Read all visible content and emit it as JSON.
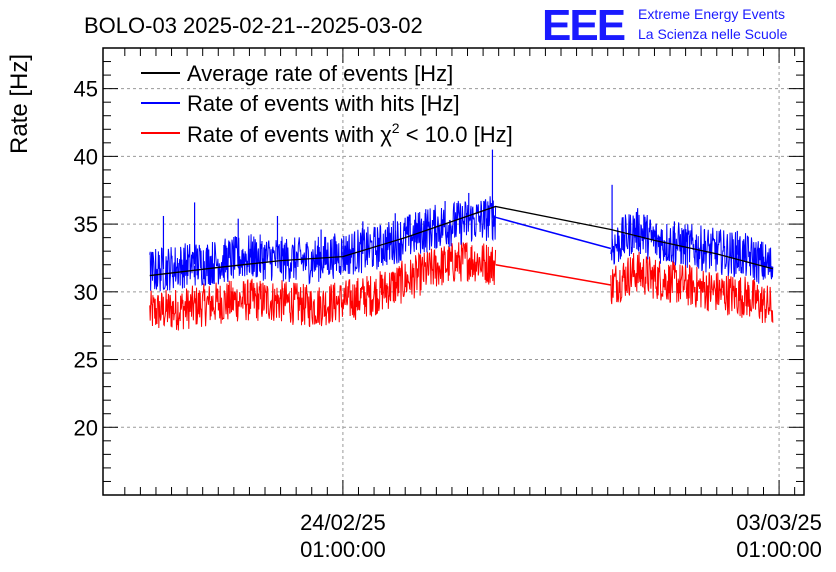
{
  "chart_data": {
    "type": "line",
    "title": "BOLO-03 2025-02-21--2025-03-02",
    "ylabel": "Rate [Hz]",
    "xlabel": "",
    "ylim": [
      15,
      48
    ],
    "xlim_days": [
      -3.85,
      7.4
    ],
    "yticks": [
      20,
      25,
      30,
      35,
      40,
      45
    ],
    "yticklabels": [
      "20",
      "25",
      "30",
      "35",
      "40",
      "45"
    ],
    "xticks": [
      {
        "day": 0,
        "date": "24/02/25",
        "time": "01:00:00"
      },
      {
        "day": 7,
        "date": "03/03/25",
        "time": "01:00:00"
      }
    ],
    "x_reference": "24/02/25 01:00:00 = day 0",
    "grid": true,
    "legend_position": "top-left",
    "legend": [
      {
        "name": "Average rate of events [Hz]",
        "color": "#000000"
      },
      {
        "name": "Rate of events with hits [Hz]",
        "color": "#0000ff"
      },
      {
        "name_main": "Rate of events with ",
        "name_chi": "χ",
        "name_sup": "2",
        "name_end": " < 10.0 [Hz]",
        "color": "#ff0000"
      }
    ],
    "series": [
      {
        "name": "Average rate of events [Hz]",
        "color": "#000000",
        "x": [
          -3.1,
          -2.0,
          -1.0,
          0.0,
          1.0,
          2.45,
          4.3,
          5.0,
          6.0,
          6.9
        ],
        "y": [
          31.2,
          31.8,
          32.3,
          32.6,
          34.0,
          36.3,
          34.6,
          33.8,
          32.8,
          31.7
        ]
      },
      {
        "name": "Rate of events with hits [Hz]",
        "color": "#0000ff",
        "x": [
          -3.1,
          -2.5,
          -2.0,
          -1.5,
          -1.0,
          -0.5,
          0.0,
          0.5,
          1.0,
          1.5,
          2.0,
          2.45,
          4.3,
          4.7,
          5.0,
          5.5,
          6.0,
          6.5,
          6.9
        ],
        "y": [
          31.5,
          32.0,
          32.2,
          32.6,
          32.4,
          32.3,
          32.8,
          33.2,
          34.0,
          34.8,
          35.2,
          35.5,
          33.2,
          34.6,
          33.8,
          33.4,
          33.0,
          32.6,
          31.8
        ],
        "noise": 1.7,
        "spikes": [
          {
            "x": -2.88,
            "y": 35.6
          },
          {
            "x": -2.38,
            "y": 36.6
          },
          {
            "x": -1.68,
            "y": 35.4
          },
          {
            "x": -1.05,
            "y": 35.6
          },
          {
            "x": -0.35,
            "y": 34.6
          },
          {
            "x": 0.32,
            "y": 35.2
          },
          {
            "x": 0.84,
            "y": 35.8
          },
          {
            "x": 1.33,
            "y": 36.1
          },
          {
            "x": 1.64,
            "y": 36.7
          },
          {
            "x": 2.02,
            "y": 37.3
          },
          {
            "x": 2.4,
            "y": 40.5
          },
          {
            "x": 4.32,
            "y": 37.9
          },
          {
            "x": 4.83,
            "y": 35.7
          },
          {
            "x": 5.32,
            "y": 35.2
          },
          {
            "x": 5.8,
            "y": 34.6
          },
          {
            "x": 6.33,
            "y": 34.5
          }
        ]
      },
      {
        "name": "Rate of events with χ2 < 10.0 [Hz]",
        "color": "#ff0000",
        "x": [
          -3.1,
          -2.5,
          -2.0,
          -1.5,
          -1.0,
          -0.5,
          0.0,
          0.5,
          1.0,
          1.5,
          2.0,
          2.45,
          4.3,
          4.7,
          5.0,
          5.5,
          6.0,
          6.5,
          6.9
        ],
        "y": [
          28.5,
          28.8,
          29.2,
          29.4,
          29.3,
          28.9,
          29.3,
          29.8,
          30.8,
          31.8,
          32.4,
          32.0,
          30.5,
          31.5,
          31.0,
          30.5,
          30.0,
          29.6,
          28.8
        ],
        "noise": 1.6,
        "spikes": []
      }
    ]
  },
  "logo": {
    "letters": "EEE",
    "line1": "Extreme Energy Events",
    "line2": "La Scienza nelle Scuole",
    "color": "#1a1aff"
  }
}
